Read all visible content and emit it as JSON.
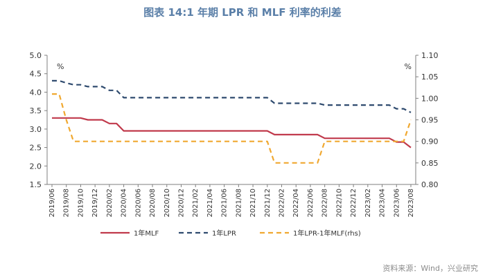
{
  "title": "图表 14:1 年期 LPR 和 MLF 利率的利差",
  "source": "资料来源：Wind，兴业研究",
  "chart_data": {
    "type": "line",
    "left_unit": "%",
    "right_unit": "%",
    "ylim_left": [
      1.5,
      5.0
    ],
    "ylim_right": [
      0.8,
      1.1
    ],
    "left_ticks": [
      "5.0",
      "4.5",
      "4.0",
      "3.5",
      "3.0",
      "2.5",
      "2.0",
      "1.5"
    ],
    "right_ticks": [
      "1.10",
      "1.05",
      "1.00",
      "0.95",
      "0.90",
      "0.85",
      "0.80"
    ],
    "x_tick_labels": [
      "2019/06",
      "2019/08",
      "2019/10",
      "2019/12",
      "2020/02",
      "2020/04",
      "2020/06",
      "2020/08",
      "2020/10",
      "2020/12",
      "2021/02",
      "2021/04",
      "2021/06",
      "2021/08",
      "2021/10",
      "2021/12",
      "2022/02",
      "2022/04",
      "2022/06",
      "2022/08",
      "2022/10",
      "2022/12",
      "2023/02",
      "2023/04",
      "2023/06",
      "2023/08"
    ],
    "months": [
      "2019/06",
      "2019/07",
      "2019/08",
      "2019/09",
      "2019/10",
      "2019/11",
      "2019/12",
      "2020/01",
      "2020/02",
      "2020/03",
      "2020/04",
      "2020/05",
      "2020/06",
      "2020/07",
      "2020/08",
      "2020/09",
      "2020/10",
      "2020/11",
      "2020/12",
      "2021/01",
      "2021/02",
      "2021/03",
      "2021/04",
      "2021/05",
      "2021/06",
      "2021/07",
      "2021/08",
      "2021/09",
      "2021/10",
      "2021/11",
      "2021/12",
      "2022/01",
      "2022/02",
      "2022/03",
      "2022/04",
      "2022/05",
      "2022/06",
      "2022/07",
      "2022/08",
      "2022/09",
      "2022/10",
      "2022/11",
      "2022/12",
      "2023/01",
      "2023/02",
      "2023/03",
      "2023/04",
      "2023/05",
      "2023/06",
      "2023/07",
      "2023/08"
    ],
    "series": [
      {
        "name": "1年MLF",
        "axis": "left",
        "style": "solid",
        "color": "#c0394b",
        "values": [
          3.3,
          3.3,
          3.3,
          3.3,
          3.3,
          3.25,
          3.25,
          3.25,
          3.15,
          3.15,
          2.95,
          2.95,
          2.95,
          2.95,
          2.95,
          2.95,
          2.95,
          2.95,
          2.95,
          2.95,
          2.95,
          2.95,
          2.95,
          2.95,
          2.95,
          2.95,
          2.95,
          2.95,
          2.95,
          2.95,
          2.95,
          2.85,
          2.85,
          2.85,
          2.85,
          2.85,
          2.85,
          2.85,
          2.75,
          2.75,
          2.75,
          2.75,
          2.75,
          2.75,
          2.75,
          2.75,
          2.75,
          2.75,
          2.65,
          2.65,
          2.5
        ]
      },
      {
        "name": "1年LPR",
        "axis": "left",
        "style": "dashed",
        "color": "#2e4a6e",
        "values": [
          4.31,
          4.31,
          4.25,
          4.2,
          4.2,
          4.15,
          4.15,
          4.15,
          4.05,
          4.05,
          3.85,
          3.85,
          3.85,
          3.85,
          3.85,
          3.85,
          3.85,
          3.85,
          3.85,
          3.85,
          3.85,
          3.85,
          3.85,
          3.85,
          3.85,
          3.85,
          3.85,
          3.85,
          3.85,
          3.85,
          3.85,
          3.7,
          3.7,
          3.7,
          3.7,
          3.7,
          3.7,
          3.7,
          3.65,
          3.65,
          3.65,
          3.65,
          3.65,
          3.65,
          3.65,
          3.65,
          3.65,
          3.65,
          3.55,
          3.55,
          3.45
        ]
      },
      {
        "name": "1年LPR-1年MLF(rhs)",
        "axis": "right",
        "style": "dashed",
        "color": "#f0a830",
        "values": [
          1.01,
          1.01,
          0.95,
          0.9,
          0.9,
          0.9,
          0.9,
          0.9,
          0.9,
          0.9,
          0.9,
          0.9,
          0.9,
          0.9,
          0.9,
          0.9,
          0.9,
          0.9,
          0.9,
          0.9,
          0.9,
          0.9,
          0.9,
          0.9,
          0.9,
          0.9,
          0.9,
          0.9,
          0.9,
          0.9,
          0.9,
          0.85,
          0.85,
          0.85,
          0.85,
          0.85,
          0.85,
          0.85,
          0.9,
          0.9,
          0.9,
          0.9,
          0.9,
          0.9,
          0.9,
          0.9,
          0.9,
          0.9,
          0.9,
          0.9,
          0.95
        ]
      }
    ],
    "legend": [
      "1年MLF",
      "1年LPR",
      "1年LPR-1年MLF(rhs)"
    ],
    "legend_position": "bottom"
  }
}
